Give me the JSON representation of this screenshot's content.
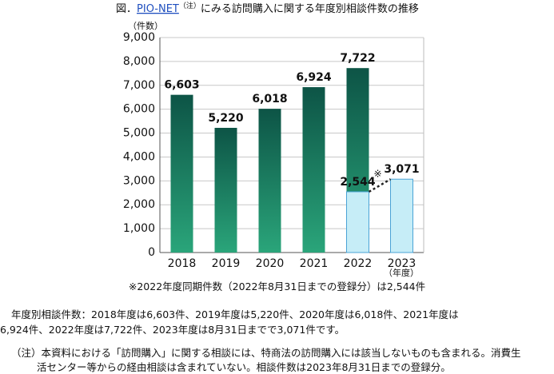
{
  "chart_data": {
    "type": "bar",
    "title_parts": [
      "図．",
      "PIO-NET",
      "（注）",
      "にみる訪問購入に関する年度別相談件数の推移"
    ],
    "y_unit": "（件数）",
    "x_unit": "（年度）",
    "categories": [
      "2018",
      "2019",
      "2020",
      "2021",
      "2022",
      "2023"
    ],
    "series": [
      {
        "color": "#0d5446",
        "color_bottom": "#2aa57a",
        "values": [
          6603,
          5220,
          6018,
          6924,
          7722,
          null
        ],
        "value_labels": [
          "6,603",
          "5,220",
          "6,018",
          "6,924",
          "7,722",
          null
        ]
      },
      {
        "color": "#c6edf7",
        "stroke": "#4aa3d6",
        "values": [
          null,
          null,
          null,
          null,
          2544,
          3071
        ],
        "value_labels": [
          null,
          null,
          null,
          null,
          "2,544",
          "3,071"
        ]
      }
    ],
    "marker": "※",
    "ylim": [
      0,
      9000
    ],
    "yticks": [
      0,
      {
        "value": 1000,
        "label": "1,000"
      },
      {
        "value": 2000,
        "label": "2,000"
      },
      {
        "value": 3000,
        "label": "3,000"
      },
      {
        "value": 4000,
        "label": "4,000"
      },
      {
        "value": 5000,
        "label": "5,000"
      },
      {
        "value": 6000,
        "label": "6,000"
      },
      {
        "value": 7000,
        "label": "7,000"
      },
      {
        "value": 8000,
        "label": "8,000"
      },
      {
        "value": 9000,
        "label": "9,000"
      }
    ],
    "grid": true,
    "note": "※2022年度同期件数（2022年8月31日までの登録分）は2,544件",
    "summary_lines": [
      "年度別相談件数：2018年度は6,603件、2019年度は5,220件、2020年度は6,018件、2021年度は",
      "6,924件、2022年度は7,722件、2023年度は8月31日までで3,071件です。"
    ],
    "footnote_lines": [
      "（注）本資料における「訪問購入」に関する相談には、特商法の訪問購入には該当しないものも含まれる。消費生",
      "活センター等からの経由相談は含まれていない。相談件数は2023年8月31日までの登録分。"
    ]
  }
}
